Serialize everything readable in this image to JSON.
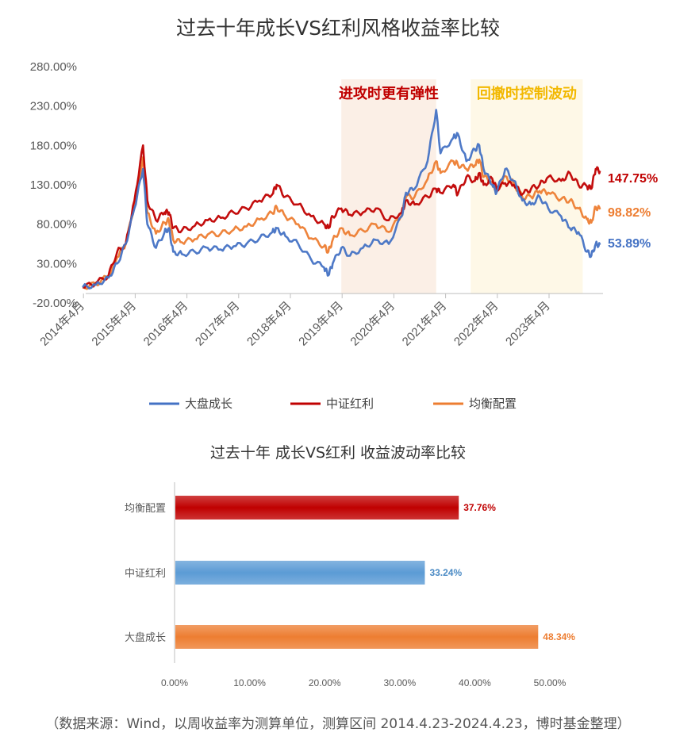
{
  "chart_data": [
    {
      "type": "line",
      "title": "过去十年成长VS红利风格收益率比较",
      "xlabel": "",
      "ylabel": "",
      "ylim": [
        -20,
        280
      ],
      "yticks": [
        "280.00%",
        "230.00%",
        "180.00%",
        "130.00%",
        "80.00%",
        "30.00%",
        "-20.00%"
      ],
      "ytick_values": [
        280,
        230,
        180,
        130,
        80,
        30,
        -20
      ],
      "xticks": [
        "2014年4月",
        "2015年4月",
        "2016年4月",
        "2017年4月",
        "2018年4月",
        "2019年4月",
        "2020年4月",
        "2021年4月",
        "2022年4月",
        "2023年4月"
      ],
      "xrange": [
        "2014-04-23",
        "2024-04-23"
      ],
      "grid": false,
      "legend_position": "bottom",
      "annotations": [
        {
          "text": "进攻时更有弹性",
          "color": "#C00000",
          "shade_from": "2019-04",
          "shade_to": "2021-02",
          "shade_color": "#FBEFE6"
        },
        {
          "text": "回撤时控制波动",
          "color": "#F2B800",
          "shade_from": "2021-10",
          "shade_to": "2023-12",
          "shade_color": "#FEF8E7"
        }
      ],
      "series": [
        {
          "name": "大盘成长",
          "color": "#4472C4",
          "end_label": "53.89%",
          "points": [
            [
              "2014-04",
              0
            ],
            [
              "2014-07",
              3
            ],
            [
              "2014-10",
              12
            ],
            [
              "2014-12",
              30
            ],
            [
              "2015-02",
              55
            ],
            [
              "2015-04",
              100
            ],
            [
              "2015-06",
              150
            ],
            [
              "2015-07",
              80
            ],
            [
              "2015-09",
              50
            ],
            [
              "2015-11",
              70
            ],
            [
              "2015-12",
              75
            ],
            [
              "2016-01",
              45
            ],
            [
              "2016-03",
              42
            ],
            [
              "2016-06",
              45
            ],
            [
              "2016-09",
              50
            ],
            [
              "2016-12",
              48
            ],
            [
              "2017-03",
              52
            ],
            [
              "2017-06",
              55
            ],
            [
              "2017-09",
              62
            ],
            [
              "2017-12",
              70
            ],
            [
              "2018-01",
              75
            ],
            [
              "2018-03",
              65
            ],
            [
              "2018-06",
              55
            ],
            [
              "2018-09",
              35
            ],
            [
              "2018-12",
              25
            ],
            [
              "2019-01",
              15
            ],
            [
              "2019-02",
              30
            ],
            [
              "2019-04",
              50
            ],
            [
              "2019-06",
              40
            ],
            [
              "2019-09",
              50
            ],
            [
              "2019-12",
              60
            ],
            [
              "2020-03",
              55
            ],
            [
              "2020-06",
              90
            ],
            [
              "2020-07",
              120
            ],
            [
              "2020-09",
              125
            ],
            [
              "2020-12",
              160
            ],
            [
              "2021-02",
              225
            ],
            [
              "2021-03",
              170
            ],
            [
              "2021-06",
              190
            ],
            [
              "2021-07",
              195
            ],
            [
              "2021-09",
              160
            ],
            [
              "2021-11",
              175
            ],
            [
              "2021-12",
              180
            ],
            [
              "2022-01",
              150
            ],
            [
              "2022-03",
              130
            ],
            [
              "2022-04",
              120
            ],
            [
              "2022-06",
              150
            ],
            [
              "2022-08",
              135
            ],
            [
              "2022-10",
              110
            ],
            [
              "2022-12",
              105
            ],
            [
              "2023-02",
              115
            ],
            [
              "2023-04",
              100
            ],
            [
              "2023-07",
              90
            ],
            [
              "2023-09",
              75
            ],
            [
              "2023-11",
              70
            ],
            [
              "2024-01",
              45
            ],
            [
              "2024-02",
              40
            ],
            [
              "2024-03",
              55
            ],
            [
              "2024-04",
              53.89
            ]
          ]
        },
        {
          "name": "中证红利",
          "color": "#C00000",
          "end_label": "147.75%",
          "points": [
            [
              "2014-04",
              0
            ],
            [
              "2014-07",
              5
            ],
            [
              "2014-10",
              15
            ],
            [
              "2014-12",
              45
            ],
            [
              "2015-02",
              55
            ],
            [
              "2015-04",
              110
            ],
            [
              "2015-06",
              180
            ],
            [
              "2015-07",
              110
            ],
            [
              "2015-09",
              85
            ],
            [
              "2015-11",
              95
            ],
            [
              "2015-12",
              95
            ],
            [
              "2016-01",
              75
            ],
            [
              "2016-03",
              72
            ],
            [
              "2016-06",
              78
            ],
            [
              "2016-09",
              85
            ],
            [
              "2016-12",
              88
            ],
            [
              "2017-03",
              95
            ],
            [
              "2017-06",
              100
            ],
            [
              "2017-09",
              110
            ],
            [
              "2017-12",
              118
            ],
            [
              "2018-01",
              130
            ],
            [
              "2018-03",
              115
            ],
            [
              "2018-06",
              105
            ],
            [
              "2018-09",
              90
            ],
            [
              "2018-12",
              80
            ],
            [
              "2019-01",
              75
            ],
            [
              "2019-02",
              90
            ],
            [
              "2019-04",
              100
            ],
            [
              "2019-06",
              92
            ],
            [
              "2019-09",
              95
            ],
            [
              "2019-12",
              100
            ],
            [
              "2020-03",
              85
            ],
            [
              "2020-06",
              95
            ],
            [
              "2020-07",
              110
            ],
            [
              "2020-09",
              105
            ],
            [
              "2020-12",
              115
            ],
            [
              "2021-02",
              125
            ],
            [
              "2021-03",
              120
            ],
            [
              "2021-06",
              130
            ],
            [
              "2021-07",
              118
            ],
            [
              "2021-09",
              140
            ],
            [
              "2021-11",
              135
            ],
            [
              "2021-12",
              145
            ],
            [
              "2022-01",
              130
            ],
            [
              "2022-03",
              138
            ],
            [
              "2022-04",
              125
            ],
            [
              "2022-06",
              132
            ],
            [
              "2022-08",
              130
            ],
            [
              "2022-10",
              118
            ],
            [
              "2022-12",
              125
            ],
            [
              "2023-02",
              130
            ],
            [
              "2023-04",
              140
            ],
            [
              "2023-07",
              135
            ],
            [
              "2023-09",
              145
            ],
            [
              "2023-11",
              130
            ],
            [
              "2024-01",
              128
            ],
            [
              "2024-02",
              125
            ],
            [
              "2024-03",
              150
            ],
            [
              "2024-04",
              147.75
            ]
          ]
        },
        {
          "name": "均衡配置",
          "color": "#ED7D31",
          "end_label": "98.82%",
          "points": [
            [
              "2014-04",
              0
            ],
            [
              "2014-07",
              4
            ],
            [
              "2014-10",
              14
            ],
            [
              "2014-12",
              38
            ],
            [
              "2015-02",
              55
            ],
            [
              "2015-04",
              105
            ],
            [
              "2015-06",
              165
            ],
            [
              "2015-07",
              95
            ],
            [
              "2015-09",
              68
            ],
            [
              "2015-11",
              82
            ],
            [
              "2015-12",
              85
            ],
            [
              "2016-01",
              60
            ],
            [
              "2016-03",
              57
            ],
            [
              "2016-06",
              61
            ],
            [
              "2016-09",
              67
            ],
            [
              "2016-12",
              68
            ],
            [
              "2017-03",
              73
            ],
            [
              "2017-06",
              77
            ],
            [
              "2017-09",
              86
            ],
            [
              "2017-12",
              94
            ],
            [
              "2018-01",
              102
            ],
            [
              "2018-03",
              90
            ],
            [
              "2018-06",
              80
            ],
            [
              "2018-09",
              62
            ],
            [
              "2018-12",
              52
            ],
            [
              "2019-01",
              45
            ],
            [
              "2019-02",
              60
            ],
            [
              "2019-04",
              75
            ],
            [
              "2019-06",
              66
            ],
            [
              "2019-09",
              72
            ],
            [
              "2019-12",
              80
            ],
            [
              "2020-03",
              70
            ],
            [
              "2020-06",
              92
            ],
            [
              "2020-07",
              115
            ],
            [
              "2020-09",
              115
            ],
            [
              "2020-12",
              137
            ],
            [
              "2021-02",
              160
            ],
            [
              "2021-03",
              145
            ],
            [
              "2021-06",
              160
            ],
            [
              "2021-07",
              156
            ],
            [
              "2021-09",
              150
            ],
            [
              "2021-11",
              155
            ],
            [
              "2021-12",
              162
            ],
            [
              "2022-01",
              140
            ],
            [
              "2022-03",
              134
            ],
            [
              "2022-04",
              122
            ],
            [
              "2022-06",
              141
            ],
            [
              "2022-08",
              132
            ],
            [
              "2022-10",
              114
            ],
            [
              "2022-12",
              115
            ],
            [
              "2023-02",
              122
            ],
            [
              "2023-04",
              120
            ],
            [
              "2023-07",
              112
            ],
            [
              "2023-09",
              110
            ],
            [
              "2023-11",
              100
            ],
            [
              "2024-01",
              86
            ],
            [
              "2024-02",
              82
            ],
            [
              "2024-03",
              102
            ],
            [
              "2024-04",
              98.82
            ]
          ]
        }
      ]
    },
    {
      "type": "bar",
      "orientation": "horizontal",
      "title": "过去十年 成长VS红利 收益波动率比较",
      "xlabel": "",
      "ylabel": "",
      "xlim": [
        0,
        50
      ],
      "xticks": [
        "0.00%",
        "10.00%",
        "20.00%",
        "30.00%",
        "40.00%",
        "50.00%"
      ],
      "xtick_values": [
        0,
        10,
        20,
        30,
        40,
        50
      ],
      "categories": [
        "均衡配置",
        "中证红利",
        "大盘成长"
      ],
      "values": [
        37.76,
        33.24,
        48.34
      ],
      "value_labels": [
        "37.76%",
        "33.24%",
        "48.34%"
      ],
      "colors": [
        "#C00000",
        "#5B9BD5",
        "#ED7D31"
      ]
    }
  ],
  "footer": {
    "source": "（数据来源：Wind，以周收益率为测算单位，测算区间 2014.4.23-2024.4.23，博时基金整理）"
  }
}
